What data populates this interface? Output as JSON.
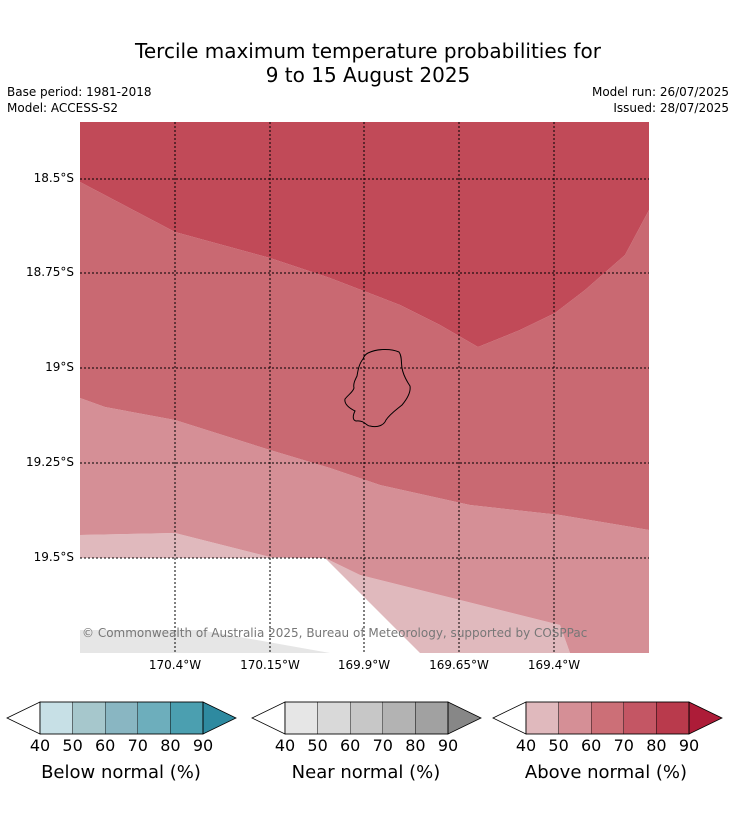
{
  "title_line1": "Tercile maximum temperature probabilities for",
  "title_line2": "9 to 15 August 2025",
  "base_period": "Base period: 1981-2018",
  "model": "Model: ACCESS-S2",
  "model_run": "Model run: 26/07/2025",
  "issued": "Issued: 28/07/2025",
  "copyright": "© Commonwealth of Australia 2025, Bureau of Meteorology, supported by COSPPac",
  "lat_labels": [
    "18.5°S",
    "18.75°S",
    "19°S",
    "19.25°S",
    "19.5°S"
  ],
  "lon_labels": [
    "170.4°W",
    "170.15°W",
    "169.9°W",
    "169.65°W",
    "169.4°W"
  ],
  "colorbars": [
    {
      "label": "Below normal (%)",
      "ticks": [
        "40",
        "50",
        "60",
        "70",
        "80",
        "90"
      ],
      "colors": [
        "#ffffff",
        "#c7e0e6",
        "#a6c7cc",
        "#89b6c2",
        "#6daebc",
        "#4b9fb0",
        "#2e8aa0"
      ]
    },
    {
      "label": "Near normal (%)",
      "ticks": [
        "40",
        "50",
        "60",
        "70",
        "80",
        "90"
      ],
      "colors": [
        "#ffffff",
        "#e6e6e6",
        "#d9d9d9",
        "#c7c7c7",
        "#b3b3b3",
        "#a1a1a1",
        "#878787"
      ]
    },
    {
      "label": "Above normal (%)",
      "ticks": [
        "40",
        "50",
        "60",
        "70",
        "80",
        "90"
      ],
      "colors": [
        "#ffffff",
        "#e0b9bd",
        "#d58f96",
        "#cc6f77",
        "#c45664",
        "#b93a4c",
        "#ad1c38"
      ]
    }
  ],
  "map_colors": {
    "above_80_90": "#c14a58",
    "above_70_80": "#c96972",
    "above_60_70": "#d58f96",
    "above_50_60": "#e0b9bd",
    "near_40_50": "#e6e6e6",
    "island_outline": "#000000"
  }
}
